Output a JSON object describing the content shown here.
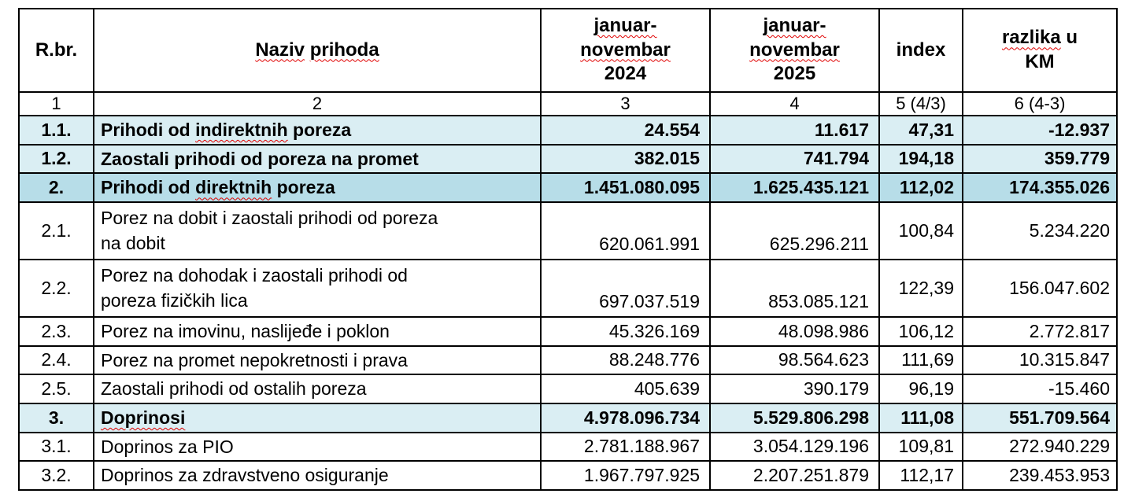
{
  "colors": {
    "highlight_light": "#daeef3",
    "highlight_dark": "#b7dde8",
    "border": "#000000",
    "spellcheck_underline": "#e00000"
  },
  "table": {
    "header": [
      {
        "id": "rbr",
        "lines": [
          [
            "R.br."
          ]
        ]
      },
      {
        "id": "naziv",
        "lines": [
          [
            {
              "t": "Naziv",
              "w": 1
            },
            " ",
            {
              "t": "prihoda",
              "w": 1
            }
          ]
        ]
      },
      {
        "id": "y2024",
        "lines": [
          [
            {
              "t": "januar-",
              "w": 1
            }
          ],
          [
            {
              "t": "novembar",
              "w": 1
            }
          ],
          [
            "2024"
          ]
        ]
      },
      {
        "id": "y2025",
        "lines": [
          [
            {
              "t": "januar-",
              "w": 1
            }
          ],
          [
            {
              "t": "novembar",
              "w": 1
            }
          ],
          [
            "2025"
          ]
        ]
      },
      {
        "id": "index",
        "lines": [
          [
            "index"
          ]
        ]
      },
      {
        "id": "razlika",
        "lines": [
          [
            {
              "t": "razlika",
              "w": 1
            },
            " u"
          ],
          [
            "KM"
          ]
        ]
      }
    ],
    "column_numbers": [
      "1",
      "2",
      "3",
      "4",
      "5 (4/3)",
      "6 (4-3)"
    ],
    "rows": [
      {
        "rbr": "1.1.",
        "naziv_lines": [
          [
            "Prihodi od ",
            {
              "t": "indirektnih",
              "w": 1
            },
            " poreza"
          ]
        ],
        "y2024": "24.554",
        "y2025": "11.617",
        "index": "47,31",
        "razlika": "-12.937",
        "highlight": "light"
      },
      {
        "rbr": "1.2.",
        "naziv_lines": [
          [
            "Zaostali prihodi od poreza na promet"
          ]
        ],
        "y2024": "382.015",
        "y2025": "741.794",
        "index": "194,18",
        "razlika": "359.779",
        "highlight": "light"
      },
      {
        "rbr": "2.",
        "naziv_lines": [
          [
            "Prihodi od ",
            {
              "t": "direktnih",
              "w": 1
            },
            " poreza"
          ]
        ],
        "y2024": "1.451.080.095",
        "y2025": "1.625.435.121",
        "index": "112,02",
        "razlika": "174.355.026",
        "highlight": "dark"
      },
      {
        "rbr": "2.1.",
        "naziv_lines": [
          [
            "Porez na dobit i zaostali prihodi od poreza"
          ],
          [
            "na dobit"
          ]
        ],
        "y2024": "620.061.991",
        "y2025": "625.296.211",
        "index": "100,84",
        "razlika": "5.234.220",
        "tall": true
      },
      {
        "rbr": "2.2.",
        "naziv_lines": [
          [
            "Porez na dohodak i zaostali prihodi od"
          ],
          [
            "poreza fizičkih lica"
          ]
        ],
        "y2024": "697.037.519",
        "y2025": "853.085.121",
        "index": "122,39",
        "razlika": "156.047.602",
        "tall": true
      },
      {
        "rbr": "2.3.",
        "naziv_lines": [
          [
            "Porez na imovinu, naslijeđe i poklon"
          ]
        ],
        "y2024": "45.326.169",
        "y2025": "48.098.986",
        "index": "106,12",
        "razlika": "2.772.817"
      },
      {
        "rbr": "2.4.",
        "naziv_lines": [
          [
            "Porez na promet nepokretnosti i prava"
          ]
        ],
        "y2024": "88.248.776",
        "y2025": "98.564.623",
        "index": "111,69",
        "razlika": "10.315.847"
      },
      {
        "rbr": "2.5.",
        "naziv_lines": [
          [
            "Zaostali prihodi od ostalih poreza"
          ]
        ],
        "y2024": "405.639",
        "y2025": "390.179",
        "index": "96,19",
        "razlika": "-15.460"
      },
      {
        "rbr": "3.",
        "naziv_lines": [
          [
            {
              "t": "Doprinosi",
              "w": 1
            }
          ]
        ],
        "y2024": "4.978.096.734",
        "y2025": "5.529.806.298",
        "index": "111,08",
        "razlika": "551.709.564",
        "highlight": "light"
      },
      {
        "rbr": "3.1.",
        "naziv_lines": [
          [
            "Doprinos za PIO"
          ]
        ],
        "y2024": "2.781.188.967",
        "y2025": "3.054.129.196",
        "index": "109,81",
        "razlika": "272.940.229"
      },
      {
        "rbr": "3.2.",
        "naziv_lines": [
          [
            "Doprinos za zdravstveno osiguranje"
          ]
        ],
        "y2024": "1.967.797.925",
        "y2025": "2.207.251.879",
        "index": "112,17",
        "razlika": "239.453.953"
      }
    ]
  }
}
